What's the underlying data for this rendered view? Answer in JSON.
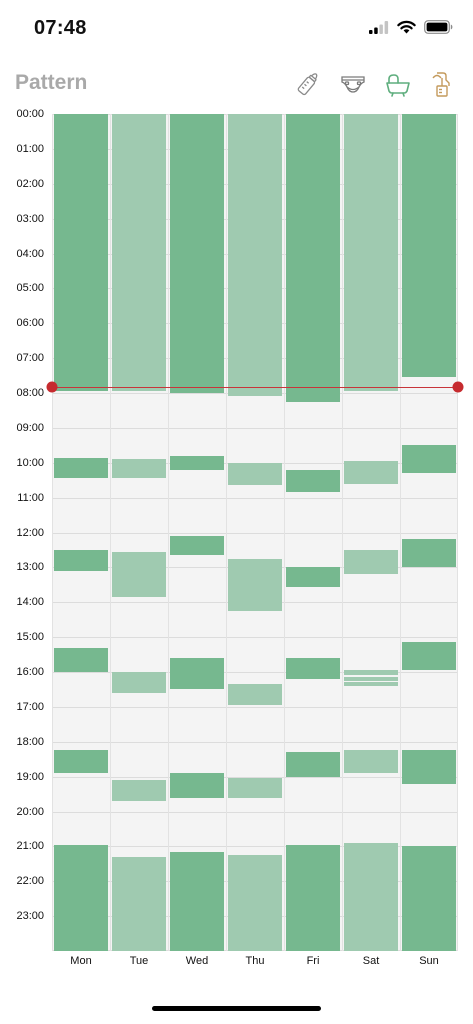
{
  "status_bar": {
    "time": "07:48"
  },
  "header": {
    "title": "Pattern",
    "tools": [
      {
        "icon": "bottle-icon",
        "selected": false
      },
      {
        "icon": "diaper-icon",
        "selected": false
      },
      {
        "icon": "bassinet-icon",
        "selected": true
      },
      {
        "icon": "breast-pump-icon",
        "selected": false
      }
    ]
  },
  "colors": {
    "dark_green": "#76b88f",
    "light_green": "#9fcab0",
    "accent_brown": "#c49a5c",
    "now_red": "#c62b2f"
  },
  "chart_data": {
    "type": "bar",
    "orientation": "vertical-timeline",
    "title": "",
    "y_axis_hours": [
      "00:00",
      "01:00",
      "02:00",
      "03:00",
      "04:00",
      "05:00",
      "06:00",
      "07:00",
      "08:00",
      "09:00",
      "10:00",
      "11:00",
      "12:00",
      "13:00",
      "14:00",
      "15:00",
      "16:00",
      "17:00",
      "18:00",
      "19:00",
      "20:00",
      "21:00",
      "22:00",
      "23:00"
    ],
    "ylim": [
      0,
      24
    ],
    "categories": [
      "Mon",
      "Tue",
      "Wed",
      "Thu",
      "Fri",
      "Sat",
      "Sun"
    ],
    "now_hour": 7.83,
    "series": [
      {
        "day": "Mon",
        "shade": "dark",
        "sleeps": [
          [
            0,
            7.95
          ],
          [
            9.85,
            10.45
          ],
          [
            12.5,
            13.1
          ],
          [
            15.3,
            16.0
          ],
          [
            18.25,
            18.9
          ],
          [
            20.95,
            24
          ]
        ]
      },
      {
        "day": "Tue",
        "shade": "light",
        "sleeps": [
          [
            0,
            7.95
          ],
          [
            9.9,
            10.45
          ],
          [
            12.55,
            13.85
          ],
          [
            16.0,
            16.6
          ],
          [
            19.1,
            19.7
          ],
          [
            21.3,
            24
          ]
        ]
      },
      {
        "day": "Wed",
        "shade": "dark",
        "sleeps": [
          [
            0,
            8.0
          ],
          [
            9.8,
            10.2
          ],
          [
            12.1,
            12.65
          ],
          [
            15.6,
            16.5
          ],
          [
            18.9,
            19.6
          ],
          [
            21.15,
            24
          ]
        ]
      },
      {
        "day": "Thu",
        "shade": "light",
        "sleeps": [
          [
            0,
            8.1
          ],
          [
            10.0,
            10.65
          ],
          [
            12.75,
            14.25
          ],
          [
            16.35,
            16.95
          ],
          [
            19.05,
            19.6
          ],
          [
            21.25,
            24
          ]
        ]
      },
      {
        "day": "Fri",
        "shade": "dark",
        "sleeps": [
          [
            0,
            8.25
          ],
          [
            10.2,
            10.85
          ],
          [
            13.0,
            13.55
          ],
          [
            15.6,
            16.2
          ],
          [
            18.3,
            19.0
          ],
          [
            20.95,
            24
          ]
        ]
      },
      {
        "day": "Sat",
        "shade": "light",
        "sleeps": [
          [
            0,
            7.95
          ],
          [
            9.95,
            10.6
          ],
          [
            12.5,
            13.2
          ],
          [
            15.95,
            16.1
          ],
          [
            16.15,
            16.25
          ],
          [
            16.3,
            16.4
          ],
          [
            18.25,
            18.9
          ],
          [
            20.9,
            24
          ]
        ]
      },
      {
        "day": "Sun",
        "shade": "dark",
        "sleeps": [
          [
            0,
            7.55
          ],
          [
            9.5,
            10.3
          ],
          [
            12.2,
            13.0
          ],
          [
            15.15,
            15.95
          ],
          [
            18.25,
            19.2
          ],
          [
            21.0,
            24
          ]
        ]
      }
    ]
  }
}
